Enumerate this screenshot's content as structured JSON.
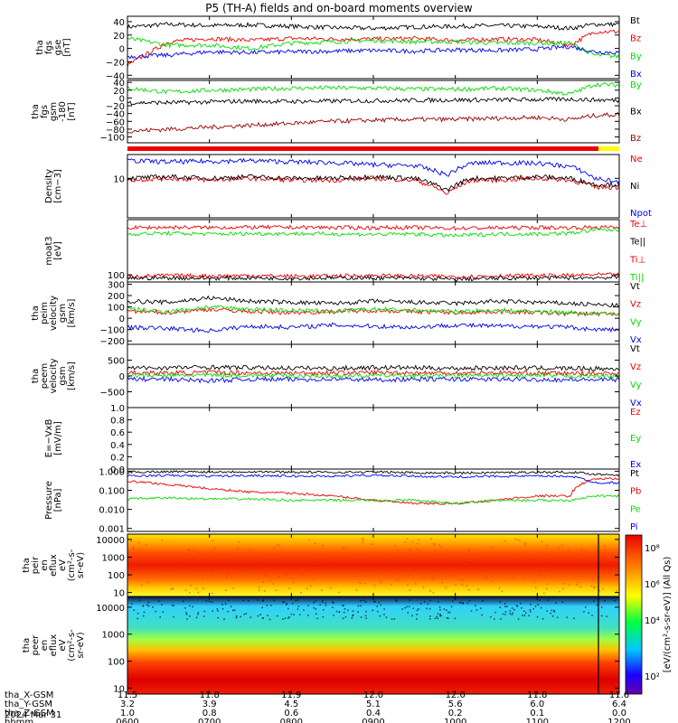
{
  "title": "P5 (TH-A) fields and on-board moments overview",
  "colors": {
    "black": "#000000",
    "red": "#ee0000",
    "green": "#00dd00",
    "blue": "#0000ee",
    "darkred": "#9b0000",
    "yellow": "#ffff00",
    "bar_red": "#ee0000"
  },
  "panels": [
    {
      "id": "fgs-gse",
      "ylabel": [
        "tha",
        "fgs",
        "gse",
        "[nT]"
      ],
      "ticks": [
        "40",
        "20",
        "0",
        "−20",
        "−40"
      ],
      "tick_values": [
        40,
        20,
        0,
        -20,
        -40
      ],
      "ylim": [
        -45,
        48
      ],
      "log": false,
      "legend": [
        {
          "text": "Bt",
          "color": "black"
        },
        {
          "text": "Bz",
          "color": "red"
        },
        {
          "text": "By",
          "color": "green"
        },
        {
          "text": "Bx",
          "color": "blue"
        }
      ]
    },
    {
      "id": "fgs-gsm",
      "ylabel": [
        "tha",
        "fgs",
        "gsm",
        "-180",
        "[nT]"
      ],
      "ticks": [
        "40",
        "20",
        "0",
        "−20",
        "−40",
        "−60",
        "−80",
        "−100"
      ],
      "tick_values": [
        40,
        20,
        0,
        -20,
        -40,
        -60,
        -80,
        -100
      ],
      "ylim": [
        -115,
        45
      ],
      "log": false,
      "legend": [
        {
          "text": "By",
          "color": "green"
        },
        {
          "text": "Bx",
          "color": "black"
        },
        {
          "text": "Bz",
          "color": "darkred"
        }
      ]
    },
    {
      "id": "density",
      "ylabel": [
        "Density",
        "[cm−3]"
      ],
      "ticks": [
        "10"
      ],
      "tick_values": [
        10
      ],
      "ylim": [
        1,
        40
      ],
      "log": true,
      "legend": [
        {
          "text": "Ne",
          "color": "red"
        },
        {
          "text": "Ni",
          "color": "black"
        },
        {
          "text": "Npot",
          "color": "blue"
        }
      ]
    },
    {
      "id": "temperature",
      "ylabel": [
        "moat3",
        "[eV]"
      ],
      "ticks": [
        "100"
      ],
      "tick_values": [
        100
      ],
      "ylim": [
        60,
        5000
      ],
      "log": true,
      "legend": [
        {
          "text": "Te⊥",
          "color": "red"
        },
        {
          "text": "Te||",
          "color": "black"
        },
        {
          "text": "Ti⊥",
          "color": "red"
        },
        {
          "text": "Ti||",
          "color": "green"
        }
      ]
    },
    {
      "id": "peim-velocity",
      "ylabel": [
        "tha",
        "peim",
        "velocity",
        "gsm",
        "[km/s]"
      ],
      "ticks": [
        "300",
        "200",
        "100",
        "0",
        "−100",
        "−200"
      ],
      "tick_values": [
        300,
        200,
        100,
        0,
        -100,
        -200
      ],
      "ylim": [
        -230,
        320
      ],
      "log": false,
      "legend": [
        {
          "text": "Vt",
          "color": "black"
        },
        {
          "text": "Vz",
          "color": "red"
        },
        {
          "text": "Vy",
          "color": "green"
        },
        {
          "text": "Vx",
          "color": "blue"
        }
      ]
    },
    {
      "id": "peem-velocity",
      "ylabel": [
        "tha",
        "peem",
        "velocity",
        "gsm",
        "[km/s]"
      ],
      "ticks": [
        "500",
        "0",
        "−500"
      ],
      "tick_values": [
        500,
        0,
        -500
      ],
      "ylim": [
        -1000,
        1000
      ],
      "log": false,
      "legend": [
        {
          "text": "Vt",
          "color": "black"
        },
        {
          "text": "Vz",
          "color": "red"
        },
        {
          "text": "Vy",
          "color": "green"
        },
        {
          "text": "Vx",
          "color": "blue"
        }
      ]
    },
    {
      "id": "efield",
      "ylabel": [
        "E=−VxB",
        "[mV/m]"
      ],
      "ticks": [
        "1.0",
        "0.8",
        "0.6",
        "0.4",
        "0.2",
        "0.0"
      ],
      "tick_values": [
        1.0,
        0.8,
        0.6,
        0.4,
        0.2,
        0.0
      ],
      "ylim": [
        0,
        1
      ],
      "log": false,
      "legend": [
        {
          "text": "Ez",
          "color": "red"
        },
        {
          "text": "Ey",
          "color": "green"
        },
        {
          "text": "Ex",
          "color": "blue"
        }
      ]
    },
    {
      "id": "pressure",
      "ylabel": [
        "Pressure",
        "[nPa]"
      ],
      "ticks": [
        "1.000",
        "0.100",
        "0.010",
        "0.001"
      ],
      "tick_values": [
        1,
        0.1,
        0.01,
        0.001
      ],
      "ylim": [
        0.0007,
        1.3
      ],
      "log": true,
      "legend": [
        {
          "text": "Pt",
          "color": "black"
        },
        {
          "text": "Pb",
          "color": "red"
        },
        {
          "text": "Pe",
          "color": "green"
        },
        {
          "text": "Pi",
          "color": "blue"
        }
      ]
    },
    {
      "id": "peir-eflux",
      "ylabel": [
        "tha",
        "peir",
        "en",
        "eflux",
        "eV",
        "(cm²-s-",
        "sr-eV)"
      ],
      "ticks": [
        "10000",
        "1000",
        "100",
        "10"
      ],
      "tick_values": [
        10000,
        1000,
        100,
        10
      ],
      "ylim": [
        6,
        20000
      ],
      "log": true,
      "spectrogram": true
    },
    {
      "id": "peer-eflux",
      "ylabel": [
        "tha",
        "peer",
        "en",
        "eflux",
        "eV",
        "(cm²-s-",
        "sr-eV)"
      ],
      "ticks": [
        "10000",
        "1000",
        "100",
        "10"
      ],
      "tick_values": [
        10000,
        1000,
        100,
        10
      ],
      "ylim": [
        6,
        25000
      ],
      "log": true,
      "spectrogram": true
    }
  ],
  "colorbar": {
    "label": "[eV/(cm²-s-sr-eV)] (All Qs)",
    "ticks": [
      "10⁸",
      "10⁶",
      "10⁴",
      "10²"
    ]
  },
  "x_axis": {
    "ticks": [
      "0600",
      "0700",
      "0800",
      "0900",
      "1000",
      "1100",
      "1200"
    ],
    "xlim": [
      6.0,
      12.0
    ],
    "rows": [
      {
        "label": "tha_X-GSM",
        "values": [
          "11.5",
          "11.8",
          "11.9",
          "12.0",
          "12.0",
          "11.8",
          "11.6"
        ]
      },
      {
        "label": "tha_Y-GSM",
        "values": [
          "3.2",
          "3.9",
          "4.5",
          "5.1",
          "5.6",
          "6.0",
          "6.4"
        ]
      },
      {
        "label": "tha_Z-GSM",
        "values": [
          "1.0",
          "0.8",
          "0.6",
          "0.4",
          "0.2",
          "0.1",
          "0.0"
        ]
      },
      {
        "label": "hhmm",
        "values": [
          "0600",
          "0700",
          "0800",
          "0900",
          "1000",
          "1100",
          "1200"
        ]
      }
    ],
    "date": "2024 Mar 31"
  },
  "chart_data": [
    {
      "type": "line",
      "panel": "fgs-gse",
      "ylabel": "tha fgs gse [nT]",
      "ylim": [
        -45,
        48
      ],
      "x_hours": [
        6.0,
        6.5,
        7.0,
        7.5,
        8.0,
        8.5,
        9.0,
        9.5,
        10.0,
        10.5,
        11.0,
        11.4,
        11.7,
        12.0
      ],
      "series": [
        {
          "name": "Bt",
          "values": [
            32,
            36,
            34,
            35,
            33,
            31,
            30,
            32,
            33,
            34,
            33,
            30,
            36,
            36
          ]
        },
        {
          "name": "Bz",
          "values": [
            -25,
            10,
            15,
            12,
            15,
            14,
            14,
            15,
            12,
            14,
            13,
            5,
            25,
            25
          ]
        },
        {
          "name": "By",
          "values": [
            15,
            5,
            5,
            0,
            8,
            10,
            12,
            10,
            10,
            8,
            8,
            8,
            -10,
            -12
          ]
        },
        {
          "name": "Bx",
          "values": [
            -12,
            -10,
            -5,
            -6,
            -5,
            -4,
            -3,
            -4,
            -2,
            -3,
            -1,
            3,
            -5,
            -6
          ]
        }
      ]
    },
    {
      "type": "line",
      "panel": "fgs-gsm",
      "ylabel": "tha fgs gsm -180 [nT]",
      "ylim": [
        -115,
        45
      ],
      "x_hours": [
        6.0,
        6.5,
        7.0,
        7.5,
        8.0,
        8.5,
        9.0,
        9.5,
        10.0,
        10.5,
        11.0,
        11.4,
        11.7,
        12.0
      ],
      "series": [
        {
          "name": "By",
          "values": [
            25,
            15,
            20,
            22,
            25,
            26,
            25,
            23,
            22,
            25,
            20,
            10,
            35,
            33
          ]
        },
        {
          "name": "Bx",
          "values": [
            -12,
            -12,
            -10,
            -8,
            -9,
            -8,
            -7,
            -6,
            -5,
            -5,
            -4,
            -3,
            -5,
            -6
          ]
        },
        {
          "name": "Bz",
          "values": [
            -85,
            -80,
            -75,
            -70,
            -65,
            -60,
            -57,
            -55,
            -55,
            -52,
            -50,
            -55,
            -45,
            -42
          ]
        }
      ]
    },
    {
      "type": "line",
      "panel": "density",
      "ylabel": "Density [cm−3]",
      "ylim": [
        1,
        40
      ],
      "log": true,
      "x_hours": [
        6.0,
        6.5,
        7.0,
        7.5,
        8.0,
        8.5,
        9.0,
        9.5,
        9.9,
        10.2,
        10.5,
        11.0,
        11.4,
        11.7,
        12.0
      ],
      "series": [
        {
          "name": "Ne",
          "values": [
            9,
            10,
            9,
            10,
            9,
            9,
            10,
            9,
            4,
            9,
            9,
            10,
            9,
            6,
            6
          ]
        },
        {
          "name": "Ni",
          "values": [
            10,
            11,
            10,
            11,
            10,
            10,
            11,
            10,
            5,
            10,
            10,
            11,
            10,
            7,
            7
          ]
        },
        {
          "name": "Npot",
          "values": [
            28,
            26,
            27,
            28,
            26,
            25,
            22,
            21,
            12,
            24,
            25,
            24,
            20,
            10,
            8
          ]
        }
      ]
    },
    {
      "type": "line",
      "panel": "temperature",
      "ylabel": "moat3 [eV]",
      "ylim": [
        60,
        5000
      ],
      "log": true,
      "x_hours": [
        6.0,
        6.5,
        7.0,
        7.5,
        8.0,
        8.5,
        9.0,
        9.5,
        10.0,
        10.5,
        11.0,
        11.4,
        11.7,
        12.0
      ],
      "series": [
        {
          "name": "Te⊥",
          "values": [
            90,
            95,
            92,
            95,
            90,
            92,
            95,
            92,
            88,
            92,
            95,
            95,
            100,
            100
          ]
        },
        {
          "name": "Te||",
          "values": [
            78,
            80,
            78,
            80,
            78,
            80,
            80,
            78,
            72,
            78,
            80,
            80,
            82,
            82
          ]
        },
        {
          "name": "Ti⊥",
          "values": [
            2800,
            2900,
            2850,
            2900,
            2900,
            2850,
            2800,
            2850,
            2700,
            2800,
            2850,
            2800,
            2900,
            2900
          ]
        },
        {
          "name": "Ti||",
          "values": [
            1800,
            1900,
            1800,
            1850,
            1850,
            1800,
            1750,
            1800,
            1600,
            1800,
            1800,
            1900,
            2400,
            2400
          ]
        }
      ]
    },
    {
      "type": "line",
      "panel": "peim-velocity",
      "ylabel": "tha peim velocity gsm [km/s]",
      "ylim": [
        -230,
        320
      ],
      "x_hours": [
        6.0,
        6.5,
        7.0,
        7.5,
        8.0,
        8.5,
        9.0,
        9.5,
        10.0,
        10.5,
        11.0,
        11.4,
        11.7,
        12.0
      ],
      "series": [
        {
          "name": "Vt",
          "values": [
            150,
            140,
            180,
            150,
            140,
            130,
            150,
            140,
            130,
            150,
            140,
            130,
            120,
            110
          ]
        },
        {
          "name": "Vz",
          "values": [
            60,
            50,
            80,
            60,
            50,
            60,
            70,
            60,
            50,
            60,
            50,
            40,
            40,
            40
          ]
        },
        {
          "name": "Vy",
          "values": [
            80,
            60,
            100,
            80,
            70,
            60,
            80,
            70,
            60,
            70,
            60,
            50,
            40,
            40
          ]
        },
        {
          "name": "Vx",
          "values": [
            -80,
            -90,
            -110,
            -70,
            -80,
            -60,
            -70,
            -80,
            -60,
            -70,
            -70,
            -80,
            -100,
            -100
          ]
        }
      ]
    },
    {
      "type": "line",
      "panel": "peem-velocity",
      "ylabel": "tha peem velocity gsm [km/s]",
      "ylim": [
        -1000,
        1000
      ],
      "x_hours": [
        6.0,
        6.5,
        7.0,
        7.5,
        8.0,
        8.5,
        9.0,
        9.5,
        10.0,
        10.5,
        11.0,
        11.4,
        11.7,
        12.0
      ],
      "series": [
        {
          "name": "Vt",
          "values": [
            250,
            260,
            280,
            260,
            250,
            240,
            270,
            260,
            240,
            260,
            250,
            240,
            230,
            220
          ]
        },
        {
          "name": "Vz",
          "values": [
            100,
            90,
            110,
            100,
            90,
            100,
            110,
            100,
            90,
            100,
            90,
            80,
            80,
            80
          ]
        },
        {
          "name": "Vy",
          "values": [
            20,
            10,
            30,
            20,
            10,
            0,
            20,
            10,
            0,
            10,
            10,
            0,
            0,
            0
          ]
        },
        {
          "name": "Vx",
          "values": [
            -100,
            -110,
            -150,
            -100,
            -110,
            -100,
            -120,
            -110,
            -100,
            -110,
            -110,
            -120,
            -120,
            -120
          ]
        }
      ]
    },
    {
      "type": "line",
      "panel": "efield",
      "ylabel": "E=−VxB [mV/m]",
      "ylim": [
        0,
        1
      ],
      "x_hours": [],
      "series": [
        {
          "name": "Ez",
          "values": []
        },
        {
          "name": "Ey",
          "values": []
        },
        {
          "name": "Ex",
          "values": []
        }
      ]
    },
    {
      "type": "line",
      "panel": "pressure",
      "ylabel": "Pressure [nPa]",
      "ylim": [
        0.0007,
        1.3
      ],
      "log": true,
      "x_hours": [
        6.0,
        6.5,
        7.0,
        7.5,
        8.0,
        8.5,
        9.0,
        9.5,
        10.0,
        10.5,
        11.0,
        11.4,
        11.7,
        12.0
      ],
      "series": [
        {
          "name": "Pt",
          "values": [
            0.9,
            0.95,
            0.92,
            0.95,
            0.9,
            0.88,
            0.9,
            0.85,
            0.8,
            0.85,
            0.88,
            0.9,
            0.7,
            0.65
          ]
        },
        {
          "name": "Pb",
          "values": [
            0.3,
            0.2,
            0.12,
            0.08,
            0.07,
            0.05,
            0.03,
            0.02,
            0.02,
            0.03,
            0.05,
            0.05,
            0.4,
            0.4
          ]
        },
        {
          "name": "Pe",
          "values": [
            0.035,
            0.04,
            0.035,
            0.035,
            0.03,
            0.03,
            0.03,
            0.03,
            0.02,
            0.03,
            0.03,
            0.03,
            0.05,
            0.05
          ]
        },
        {
          "name": "Pi",
          "values": [
            0.55,
            0.6,
            0.55,
            0.6,
            0.55,
            0.55,
            0.6,
            0.55,
            0.5,
            0.55,
            0.55,
            0.55,
            0.25,
            0.25
          ]
        }
      ]
    },
    {
      "type": "heatmap",
      "panel": "peir-eflux",
      "ylabel": "tha peir en eflux eV (cm²-s- sr-eV)",
      "ylim": [
        6,
        20000
      ],
      "log": true,
      "x_hours": [
        6.0,
        12.0
      ],
      "color_scale": "[eV/(cm²-s-sr-eV)] (All Qs)"
    },
    {
      "type": "heatmap",
      "panel": "peer-eflux",
      "ylabel": "tha peer en eflux eV (cm²-s- sr-eV)",
      "ylim": [
        6,
        25000
      ],
      "log": true,
      "x_hours": [
        6.0,
        12.0
      ],
      "color_scale": "[eV/(cm²-s-sr-eV)] (All Qs)"
    }
  ]
}
